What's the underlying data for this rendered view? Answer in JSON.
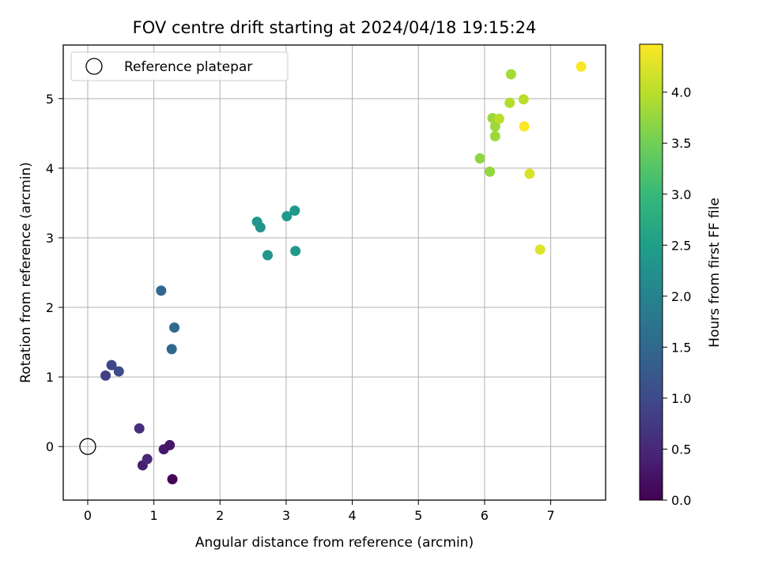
{
  "chart_data": {
    "type": "scatter",
    "title": "FOV centre drift starting at 2024/04/18 19:15:24",
    "xlabel": "Angular distance from reference (arcmin)",
    "ylabel": "Rotation from reference (arcmin)",
    "xlim": [
      -0.37,
      7.83
    ],
    "ylim": [
      -0.77,
      5.77
    ],
    "xticks": [
      0,
      1,
      2,
      3,
      4,
      5,
      6,
      7
    ],
    "yticks": [
      0,
      1,
      2,
      3,
      4,
      5
    ],
    "grid": true,
    "legend": {
      "position": "top-left",
      "entries": [
        "Reference platepar"
      ]
    },
    "reference_point": {
      "x": 0,
      "y": 0
    },
    "colorbar": {
      "label": "Hours from first FF file",
      "colormap": "viridis",
      "range": [
        0.0,
        4.47
      ],
      "ticks": [
        "0.0",
        "0.5",
        "1.0",
        "1.5",
        "2.0",
        "2.5",
        "3.0",
        "3.5",
        "4.0"
      ]
    },
    "series": [
      {
        "x": [
          1.28,
          0.83,
          0.9,
          1.15,
          1.24,
          0.78,
          0.27,
          0.36,
          0.47,
          1.27,
          1.31,
          1.11,
          2.56,
          2.61,
          2.72,
          3.01,
          3.13,
          3.14,
          5.93,
          6.08,
          6.16,
          6.16,
          6.12,
          6.22,
          6.38,
          6.4,
          6.59,
          6.6,
          6.68,
          6.84,
          7.46
        ],
        "y": [
          -0.47,
          -0.27,
          -0.18,
          -0.04,
          0.02,
          0.26,
          1.02,
          1.17,
          1.08,
          1.4,
          1.71,
          2.24,
          3.23,
          3.15,
          2.75,
          3.31,
          3.39,
          2.81,
          4.14,
          3.95,
          4.46,
          4.6,
          4.72,
          4.71,
          4.94,
          5.35,
          4.99,
          4.6,
          3.92,
          2.83,
          5.46
        ],
        "hours": [
          0.05,
          0.4,
          0.5,
          0.3,
          0.25,
          0.6,
          0.85,
          0.95,
          1.0,
          1.5,
          1.5,
          1.5,
          2.35,
          2.3,
          2.35,
          2.4,
          2.4,
          2.4,
          3.7,
          3.75,
          3.8,
          3.8,
          3.8,
          4.0,
          3.95,
          3.85,
          4.0,
          4.45,
          4.2,
          4.25,
          4.45
        ]
      }
    ]
  }
}
